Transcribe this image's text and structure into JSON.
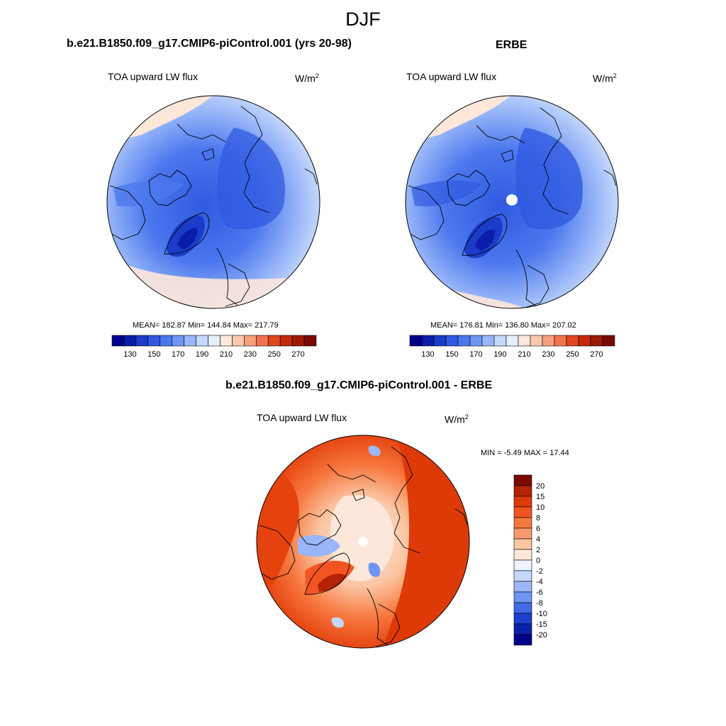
{
  "title": "DJF",
  "panels": [
    {
      "id": "model",
      "title": "b.e21.B1850.f09_g17.CMIP6-piControl.001 (yrs 20-98)",
      "variable": "TOA upward LW flux",
      "units_base": "W/m",
      "units_exp": "2",
      "stats": "MEAN= 182.87  Min= 144.84  Max= 217.79"
    },
    {
      "id": "obs",
      "title": "ERBE",
      "variable": "TOA upward LW flux",
      "units_base": "W/m",
      "units_exp": "2",
      "stats": "MEAN= 176.81  Min= 136.80  Max= 207.02"
    },
    {
      "id": "diff",
      "title": "b.e21.B1850.f09_g17.CMIP6-piControl.001 - ERBE",
      "variable": "TOA upward LW flux",
      "units_base": "W/m",
      "units_exp": "2",
      "stats": "MIN =  -5.49 MAX =  17.44"
    }
  ],
  "abs_colorbar": {
    "labels": [
      "130",
      "150",
      "170",
      "190",
      "210",
      "230",
      "250",
      "270"
    ],
    "colors": [
      "#00008b",
      "#0a1ca8",
      "#1a3cc8",
      "#2f5ae0",
      "#4b78ee",
      "#6f95f4",
      "#98b6f8",
      "#c4d8fb",
      "#e6f0fd",
      "#fde7da",
      "#fbc8ae",
      "#f6a07c",
      "#ef7450",
      "#e0471e",
      "#c22a0a",
      "#9a1a04",
      "#7a0a00"
    ]
  },
  "diff_colorbar": {
    "labels": [
      "20",
      "15",
      "10",
      "8",
      "6",
      "4",
      "2",
      "0",
      "-2",
      "-4",
      "-6",
      "-8",
      "-10",
      "-15",
      "-20"
    ],
    "colors": [
      "#7a0a00",
      "#b52206",
      "#dd3a08",
      "#f25522",
      "#f7783f",
      "#f89a6c",
      "#fbc6a3",
      "#fde7da",
      "#eef4fe",
      "#c4d8fb",
      "#9ab8f7",
      "#6f95f4",
      "#3f6ae8",
      "#1c3fd0",
      "#0a22a8",
      "#00008b"
    ]
  }
}
